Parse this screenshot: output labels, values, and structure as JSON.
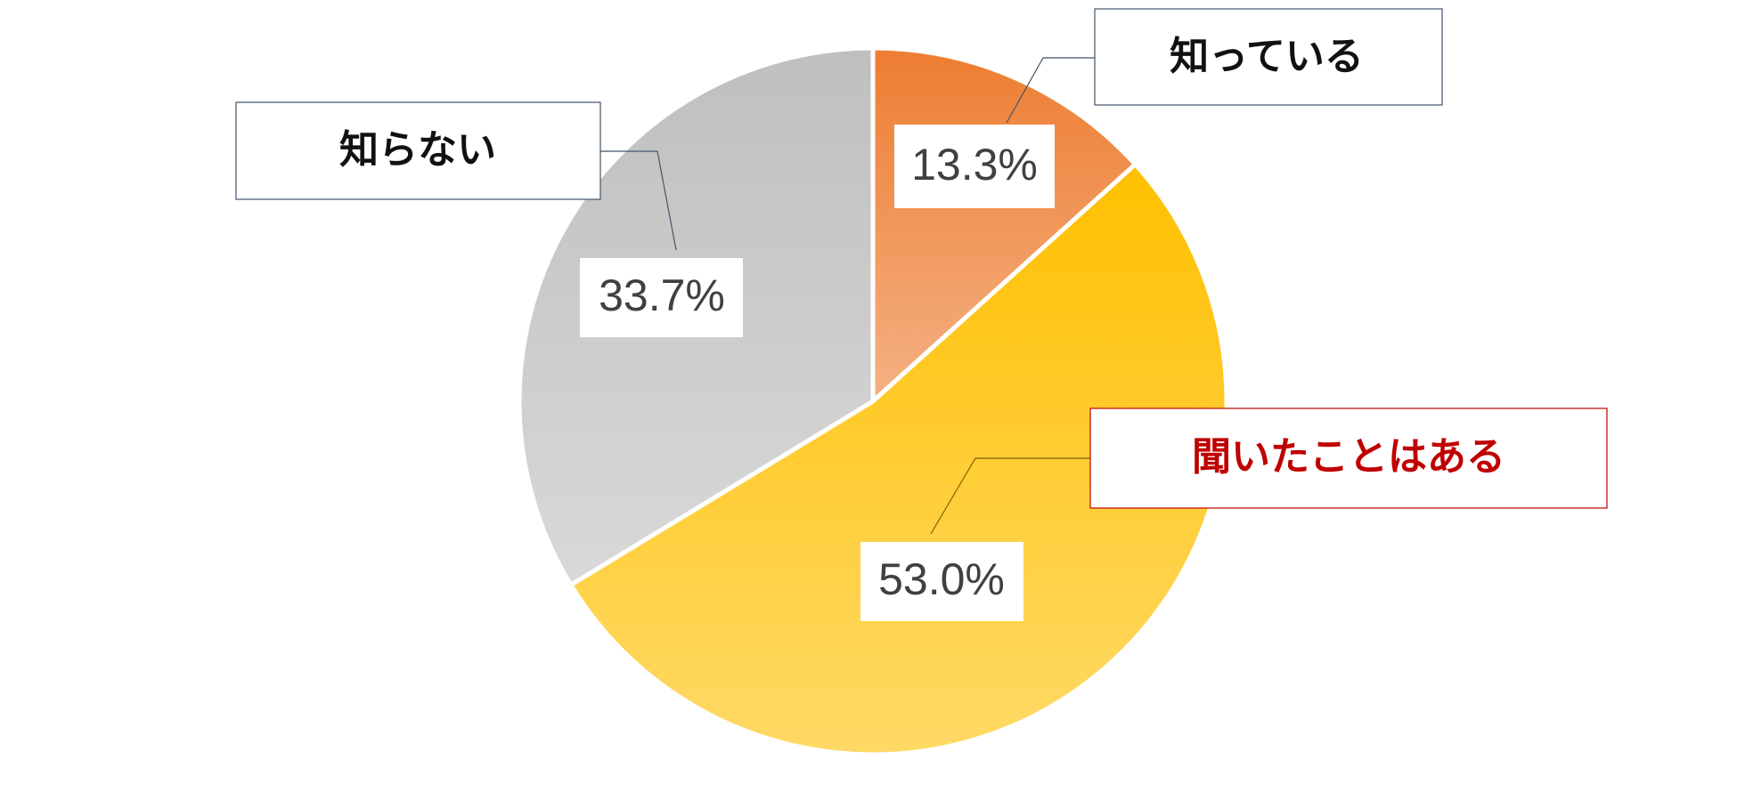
{
  "chart_data": {
    "type": "pie",
    "categories": [
      "知っている",
      "聞いたことはある",
      "知らない"
    ],
    "values": [
      13.3,
      53.0,
      33.7
    ],
    "value_labels": [
      "13.3%",
      "53.0%",
      "33.7%"
    ],
    "colors": [
      "#ed7d31",
      "#ffc000",
      "#bfbfbf"
    ]
  }
}
